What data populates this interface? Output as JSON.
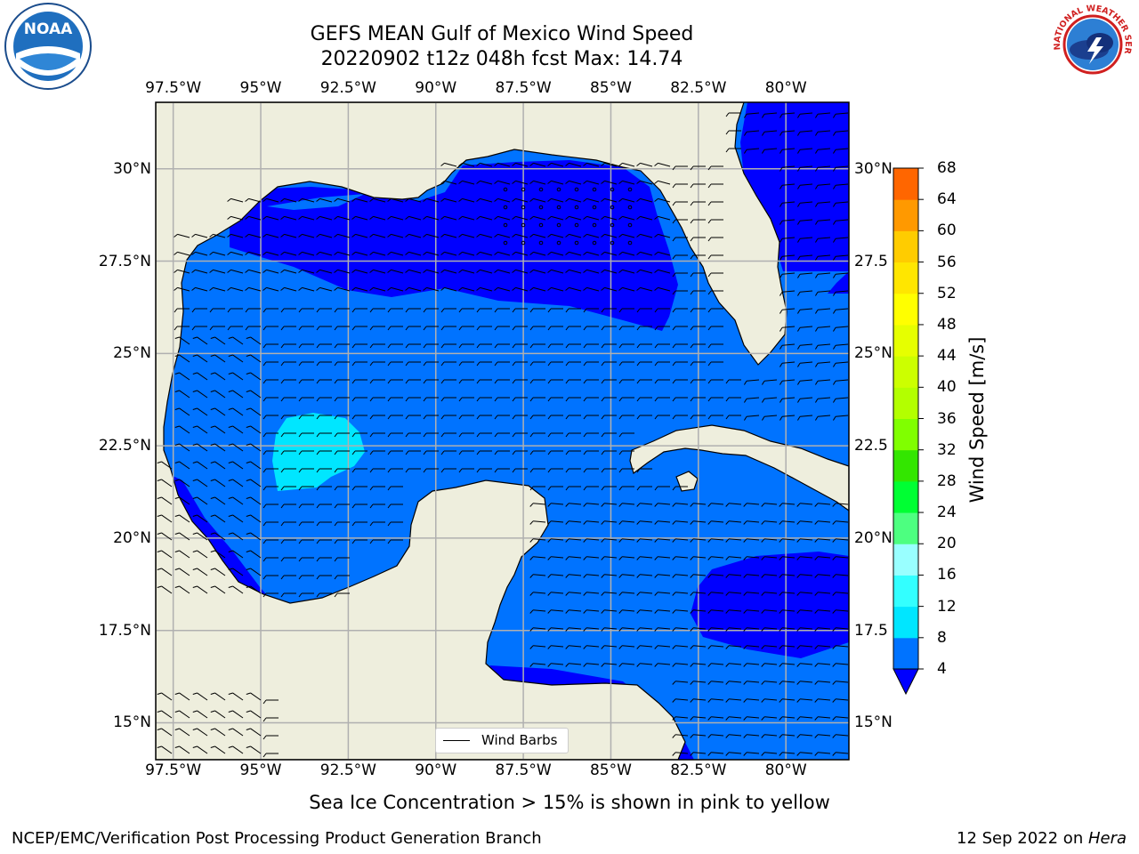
{
  "title": {
    "line1": "GEFS MEAN Gulf of Mexico Wind Speed",
    "line2": "20220902 t12z 048h fcst   Max: 14.74"
  },
  "footer": {
    "note": "Sea Ice Concentration > 15% is shown in pink to yellow",
    "credit_left": "NCEP/EMC/Verification Post Processing Product Generation Branch",
    "credit_right_date": "12 Sep 2022 on ",
    "credit_right_machine": "Hera"
  },
  "logos": {
    "left": {
      "name": "noaa-logo",
      "text": "NOAA"
    },
    "right": {
      "name": "nws-logo",
      "text": "NATIONAL WEATHER SERVICE"
    }
  },
  "map": {
    "projection": "PlateCarree",
    "lon_range": [
      -98.0,
      -78.2
    ],
    "lat_range": [
      14.0,
      31.8
    ],
    "lon_ticks": [
      "97.5°W",
      "95°W",
      "92.5°W",
      "90°W",
      "87.5°W",
      "85°W",
      "82.5°W",
      "80°W"
    ],
    "lat_ticks_left": [
      "30°N",
      "27.5°N",
      "25°N",
      "22.5°N",
      "20°N",
      "17.5°N",
      "15°N"
    ],
    "lat_ticks_right": [
      "30°N",
      "27.5",
      "25°N",
      "22.5",
      "20°N",
      "17.5",
      "15°N"
    ],
    "land_color": "#eeeedd",
    "grid": true,
    "legend_label": "Wind Barbs"
  },
  "colorbar": {
    "label": "Wind Speed [m/s]",
    "levels": [
      "4",
      "8",
      "12",
      "16",
      "20",
      "24",
      "28",
      "32",
      "36",
      "40",
      "44",
      "48",
      "52",
      "56",
      "60",
      "64",
      "68"
    ],
    "colors": [
      "#0073ff",
      "#00e6ff",
      "#33ffff",
      "#99ffff",
      "#4dff80",
      "#00ff33",
      "#33e600",
      "#80ff00",
      "#b3ff00",
      "#ccff00",
      "#e6ff00",
      "#ffff00",
      "#ffe600",
      "#ffcc00",
      "#ff9900",
      "#ff6600",
      "#ff3300",
      "#ff0000"
    ],
    "underflow_color": "#0000ff"
  },
  "colors": {
    "level_0_4": "#0000ff",
    "level_4_8": "#0073ff",
    "level_8_12": "#00e6ff",
    "level_12_16": "#33ffff"
  }
}
